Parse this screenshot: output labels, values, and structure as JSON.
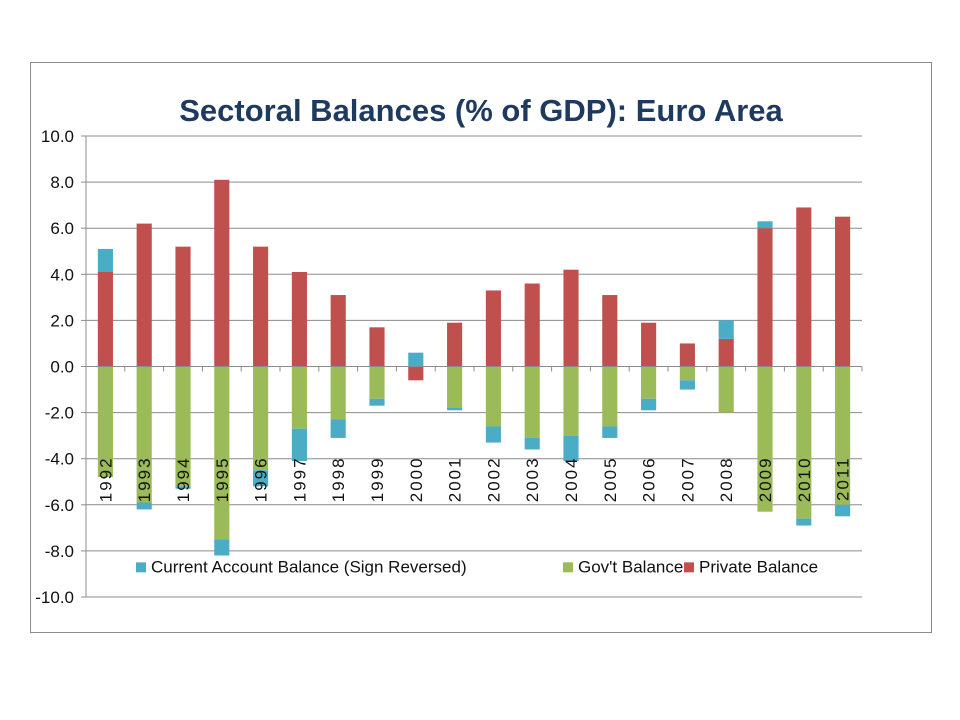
{
  "chart_data": {
    "type": "bar",
    "stacked": true,
    "title": "Sectoral Balances (% of GDP): Euro Area",
    "xlabel": "",
    "ylabel": "",
    "ylim": [
      -10,
      10
    ],
    "yticks": [
      10,
      8,
      6,
      4,
      2,
      0,
      -2,
      -4,
      -6,
      -8,
      -10
    ],
    "ytick_labels": [
      "10.0",
      "8.0",
      "6.0",
      "4.0",
      "2.0",
      "0.0",
      "-2.0",
      "-4.0",
      "-6.0",
      "-8.0",
      "-10.0"
    ],
    "grid": true,
    "legend_position": "bottom",
    "categories": [
      "1992",
      "1993",
      "1994",
      "1995",
      "1996",
      "1997",
      "1998",
      "1999",
      "2000",
      "2001",
      "2002",
      "2003",
      "2004",
      "2005",
      "2006",
      "2007",
      "2008",
      "2009",
      "2010",
      "2011"
    ],
    "series": [
      {
        "name": "Current Account Balance (Sign Reversed)",
        "color": "#4bacc6",
        "values": [
          1.0,
          -0.3,
          -0.1,
          -0.7,
          -0.7,
          -1.4,
          -0.8,
          -0.3,
          0.6,
          -0.1,
          -0.7,
          -0.5,
          -1.1,
          -0.5,
          -0.5,
          -0.4,
          0.8,
          0.3,
          -0.3,
          -0.5
        ]
      },
      {
        "name": "Gov't Balance",
        "color": "#9bbb59",
        "values": [
          -4.8,
          -5.9,
          -5.2,
          -7.5,
          -4.5,
          -2.7,
          -2.3,
          -1.4,
          0.0,
          -1.8,
          -2.6,
          -3.1,
          -3.0,
          -2.6,
          -1.4,
          -0.6,
          -2.0,
          -6.3,
          -6.6,
          -6.0
        ]
      },
      {
        "name": "Private Balance",
        "color": "#c0504d",
        "values": [
          4.1,
          6.2,
          5.2,
          8.1,
          5.2,
          4.1,
          3.1,
          1.7,
          -0.6,
          1.9,
          3.3,
          3.6,
          4.2,
          3.1,
          1.9,
          1.0,
          1.2,
          6.0,
          6.9,
          6.5
        ]
      }
    ]
  }
}
